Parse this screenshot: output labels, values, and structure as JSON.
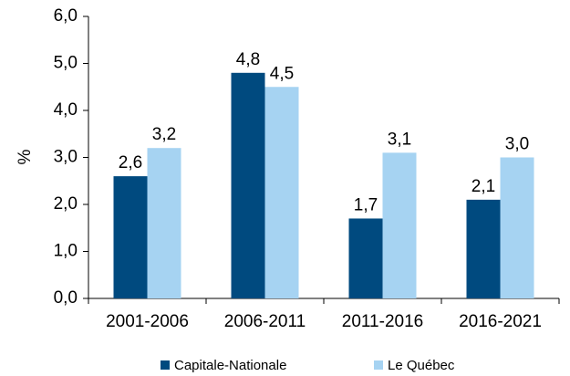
{
  "chart_data": {
    "type": "bar",
    "ylabel": "%",
    "categories": [
      "2001-2006",
      "2006-2011",
      "2011-2016",
      "2016-2021"
    ],
    "series": [
      {
        "name": "Capitale-Nationale",
        "color": "#004a7f",
        "values": [
          2.6,
          4.8,
          1.7,
          2.1
        ],
        "value_labels": [
          "2,6",
          "4,8",
          "1,7",
          "2,1"
        ]
      },
      {
        "name": "Le Québec",
        "color": "#a6d3f2",
        "values": [
          3.2,
          4.5,
          3.1,
          3.0
        ],
        "value_labels": [
          "3,2",
          "4,5",
          "3,1",
          "3,0"
        ]
      }
    ],
    "ylim": [
      0,
      6
    ],
    "yticks": [
      {
        "value": 0,
        "label": "0,0"
      },
      {
        "value": 1,
        "label": "1,0"
      },
      {
        "value": 2,
        "label": "2,0"
      },
      {
        "value": 3,
        "label": "3,0"
      },
      {
        "value": 4,
        "label": "4,0"
      },
      {
        "value": 5,
        "label": "5,0"
      },
      {
        "value": 6,
        "label": "6,0"
      }
    ],
    "grid": false,
    "legend": "bottom"
  }
}
